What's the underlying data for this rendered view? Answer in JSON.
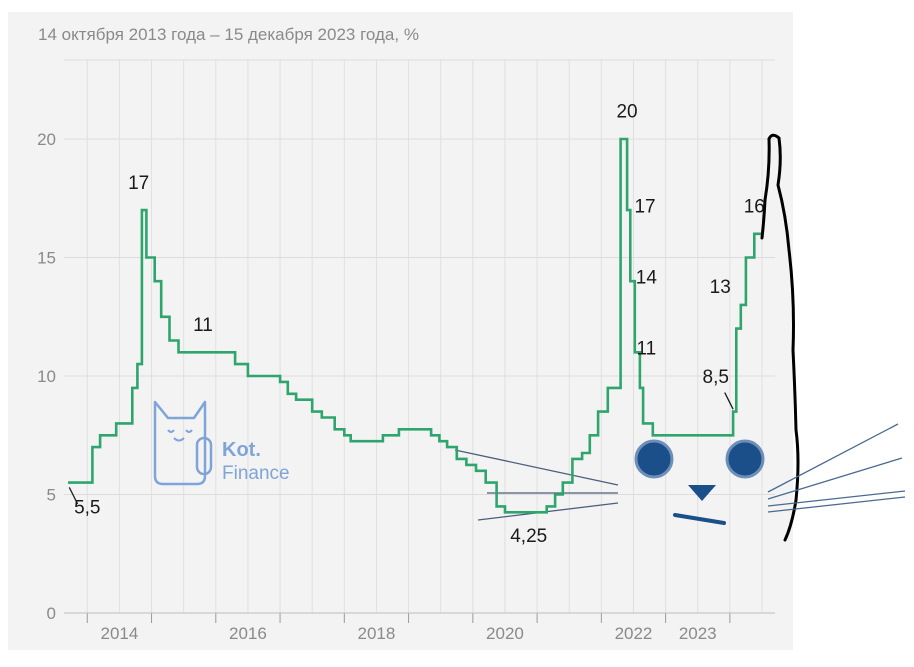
{
  "chart_data": {
    "type": "line",
    "subtitle": "14 октября 2013 года – 15 декабря 2023 года, %",
    "xlabel": "",
    "ylabel": "",
    "xlim": [
      2013.2,
      2024.0
    ],
    "ylim": [
      0,
      20
    ],
    "grid": true,
    "x_ticks": [
      {
        "label": "2014",
        "value": 2014.0
      },
      {
        "label": "2016",
        "value": 2016.0
      },
      {
        "label": "2018",
        "value": 2018.0
      },
      {
        "label": "2020",
        "value": 2020.0
      },
      {
        "label": "2022",
        "value": 2022.0
      },
      {
        "label": "2023",
        "value": 2023.0
      }
    ],
    "y_ticks": [
      {
        "label": "0",
        "value": 0
      },
      {
        "label": "5",
        "value": 5
      },
      {
        "label": "10",
        "value": 10
      },
      {
        "label": "15",
        "value": 15
      },
      {
        "label": "20",
        "value": 20
      }
    ],
    "line_color": "#2fa56e",
    "series": [
      {
        "name": "",
        "points": [
          [
            2013.2,
            5.5
          ],
          [
            2013.58,
            5.5
          ],
          [
            2013.58,
            7.0
          ],
          [
            2013.7,
            7.0
          ],
          [
            2013.7,
            7.5
          ],
          [
            2013.95,
            7.5
          ],
          [
            2013.95,
            8.0
          ],
          [
            2014.2,
            8.0
          ],
          [
            2014.2,
            9.5
          ],
          [
            2014.28,
            9.5
          ],
          [
            2014.28,
            10.5
          ],
          [
            2014.35,
            10.5
          ],
          [
            2014.35,
            17.0
          ],
          [
            2014.42,
            17.0
          ],
          [
            2014.42,
            15.0
          ],
          [
            2014.55,
            15.0
          ],
          [
            2014.55,
            14.0
          ],
          [
            2014.65,
            14.0
          ],
          [
            2014.65,
            12.5
          ],
          [
            2014.78,
            12.5
          ],
          [
            2014.78,
            11.5
          ],
          [
            2014.92,
            11.5
          ],
          [
            2014.92,
            11.0
          ],
          [
            2015.8,
            11.0
          ],
          [
            2015.8,
            10.5
          ],
          [
            2016.0,
            10.5
          ],
          [
            2016.0,
            10.0
          ],
          [
            2016.5,
            10.0
          ],
          [
            2016.5,
            9.75
          ],
          [
            2016.62,
            9.75
          ],
          [
            2016.62,
            9.25
          ],
          [
            2016.75,
            9.25
          ],
          [
            2016.75,
            9.0
          ],
          [
            2017.0,
            9.0
          ],
          [
            2017.0,
            8.5
          ],
          [
            2017.15,
            8.5
          ],
          [
            2017.15,
            8.25
          ],
          [
            2017.35,
            8.25
          ],
          [
            2017.35,
            7.75
          ],
          [
            2017.5,
            7.75
          ],
          [
            2017.5,
            7.5
          ],
          [
            2017.6,
            7.5
          ],
          [
            2017.6,
            7.25
          ],
          [
            2018.1,
            7.25
          ],
          [
            2018.1,
            7.5
          ],
          [
            2018.35,
            7.5
          ],
          [
            2018.35,
            7.75
          ],
          [
            2018.85,
            7.75
          ],
          [
            2018.85,
            7.5
          ],
          [
            2018.98,
            7.5
          ],
          [
            2018.98,
            7.25
          ],
          [
            2019.1,
            7.25
          ],
          [
            2019.1,
            7.0
          ],
          [
            2019.25,
            7.0
          ],
          [
            2019.25,
            6.5
          ],
          [
            2019.4,
            6.5
          ],
          [
            2019.4,
            6.25
          ],
          [
            2019.55,
            6.25
          ],
          [
            2019.55,
            6.0
          ],
          [
            2019.7,
            6.0
          ],
          [
            2019.7,
            5.5
          ],
          [
            2019.87,
            5.5
          ],
          [
            2019.87,
            4.5
          ],
          [
            2020.0,
            4.5
          ],
          [
            2020.0,
            4.25
          ],
          [
            2020.65,
            4.25
          ],
          [
            2020.65,
            4.5
          ],
          [
            2020.78,
            4.5
          ],
          [
            2020.78,
            5.0
          ],
          [
            2020.9,
            5.0
          ],
          [
            2020.9,
            5.5
          ],
          [
            2021.05,
            5.5
          ],
          [
            2021.05,
            6.5
          ],
          [
            2021.2,
            6.5
          ],
          [
            2021.2,
            6.75
          ],
          [
            2021.32,
            6.75
          ],
          [
            2021.32,
            7.5
          ],
          [
            2021.45,
            7.5
          ],
          [
            2021.45,
            8.5
          ],
          [
            2021.6,
            8.5
          ],
          [
            2021.6,
            9.5
          ],
          [
            2021.8,
            9.5
          ],
          [
            2021.8,
            20.0
          ],
          [
            2021.9,
            20.0
          ],
          [
            2021.9,
            17.0
          ],
          [
            2021.95,
            17.0
          ],
          [
            2021.95,
            14.0
          ],
          [
            2022.02,
            14.0
          ],
          [
            2022.02,
            11.0
          ],
          [
            2022.1,
            11.0
          ],
          [
            2022.1,
            9.5
          ],
          [
            2022.15,
            9.5
          ],
          [
            2022.15,
            8.0
          ],
          [
            2022.3,
            8.0
          ],
          [
            2022.3,
            7.5
          ],
          [
            2023.55,
            7.5
          ],
          [
            2023.55,
            8.5
          ],
          [
            2023.6,
            8.5
          ],
          [
            2023.6,
            12.0
          ],
          [
            2023.67,
            12.0
          ],
          [
            2023.67,
            13.0
          ],
          [
            2023.75,
            13.0
          ],
          [
            2023.75,
            15.0
          ],
          [
            2023.88,
            15.0
          ],
          [
            2023.88,
            16.0
          ],
          [
            2024.0,
            16.0
          ]
        ]
      }
    ],
    "annotations": [
      {
        "text": "5,5",
        "x": 2013.5,
        "y": 4.2
      },
      {
        "text": "17",
        "x": 2014.3,
        "y": 17.9
      },
      {
        "text": "11",
        "x": 2015.3,
        "y": 11.9
      },
      {
        "text": "4,25",
        "x": 2020.37,
        "y": 3.0
      },
      {
        "text": "20",
        "x": 2021.9,
        "y": 20.9
      },
      {
        "text": "17",
        "x": 2022.18,
        "y": 16.9
      },
      {
        "text": "14",
        "x": 2022.2,
        "y": 13.9
      },
      {
        "text": "11",
        "x": 2022.2,
        "y": 10.9
      },
      {
        "text": "8,5",
        "x": 2023.28,
        "y": 9.7
      },
      {
        "text": "13",
        "x": 2023.35,
        "y": 13.5
      },
      {
        "text": "16",
        "x": 2023.88,
        "y": 16.9
      }
    ]
  },
  "logo": {
    "name": "Kot.",
    "suffix": "Finance",
    "color": "#7ea4d8"
  },
  "drawing": {
    "ink_color": "#000000",
    "face_color": "#1b4f8a",
    "whisker_color": "#3f5f80"
  }
}
